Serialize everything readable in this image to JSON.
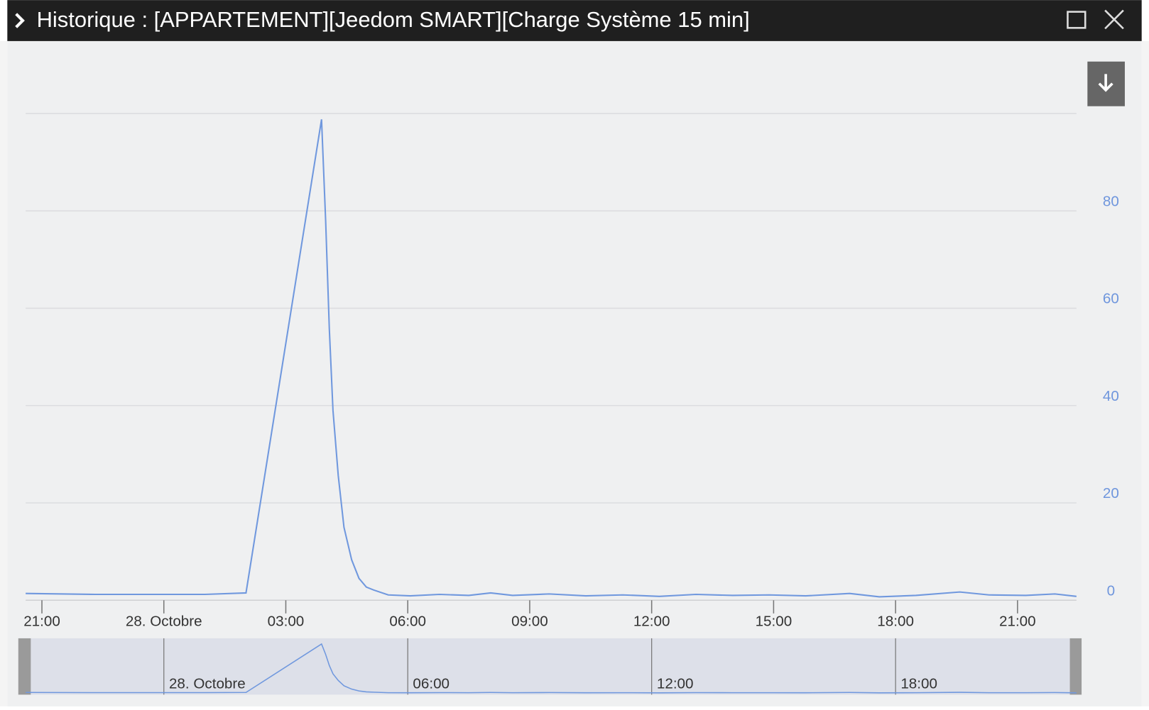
{
  "chart_data": {
    "type": "line",
    "title": "Historique : [APPARTEMENT][Jeedom SMART][Charge Système 15 min]",
    "color": "#7098de",
    "x": [
      -3.4,
      -1.69,
      1.01,
      2.02,
      3.88,
      3.98,
      4.07,
      4.16,
      4.29,
      4.43,
      4.62,
      4.8,
      4.98,
      5.16,
      5.52,
      6.06,
      6.78,
      7.5,
      8.04,
      8.58,
      9.48,
      10.38,
      11.29,
      12.19,
      13.09,
      13.99,
      14.89,
      15.79,
      16.87,
      17.6,
      18.5,
      19.58,
      20.3,
      21.2,
      21.92,
      22.45
    ],
    "values": [
      1.4,
      1.2,
      1.2,
      1.5,
      98.8,
      78,
      55.8,
      39,
      25.6,
      15,
      8.3,
      4.5,
      2.7,
      2.1,
      1.1,
      0.9,
      1.2,
      1.0,
      1.5,
      1.0,
      1.3,
      0.9,
      1.1,
      0.8,
      1.2,
      1.0,
      1.1,
      0.9,
      1.4,
      0.7,
      1.0,
      1.7,
      1.1,
      1.0,
      1.3,
      0.8
    ],
    "xlim": [
      -3.4,
      22.45
    ],
    "xticks": [
      {
        "value": -3,
        "label": "21:00"
      },
      {
        "value": 0,
        "label": "28. Octobre"
      },
      {
        "value": 3,
        "label": "03:00"
      },
      {
        "value": 6,
        "label": "06:00"
      },
      {
        "value": 9,
        "label": "09:00"
      },
      {
        "value": 12,
        "label": "12:00"
      },
      {
        "value": 15,
        "label": "15:00"
      },
      {
        "value": 18,
        "label": "18:00"
      },
      {
        "value": 21,
        "label": "21:00"
      }
    ],
    "ylim": [
      0,
      100
    ],
    "yticks": [
      0,
      20,
      40,
      60,
      80
    ],
    "grid": true,
    "navigator": {
      "xticks": [
        {
          "value": 0,
          "label": "28. Octobre"
        },
        {
          "value": 6,
          "label": "06:00"
        },
        {
          "value": 12,
          "label": "12:00"
        },
        {
          "value": 18,
          "label": "18:00"
        }
      ]
    }
  }
}
